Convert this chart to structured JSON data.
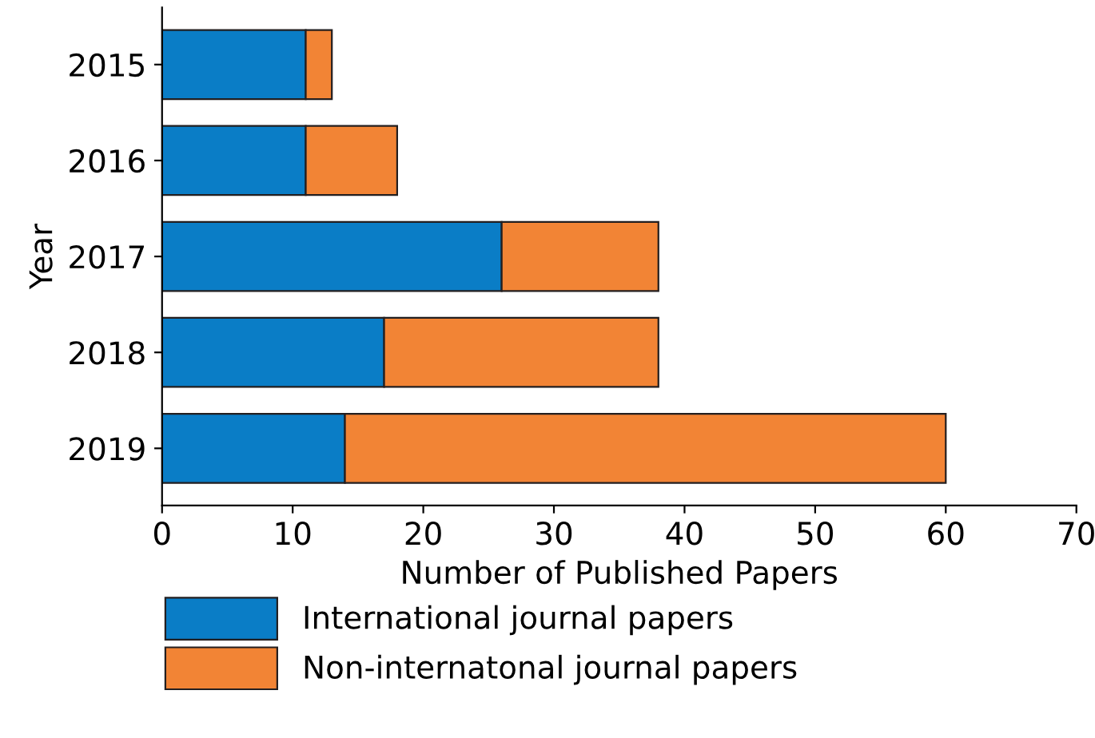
{
  "chart_data": {
    "type": "bar",
    "orientation": "horizontal",
    "stacked": true,
    "xlabel": "Number of Published Papers",
    "ylabel": "Year",
    "categories": [
      "2015",
      "2016",
      "2017",
      "2018",
      "2019"
    ],
    "series": [
      {
        "name": "International journal papers",
        "color": "#0a7dc6",
        "values": [
          11,
          11,
          26,
          17,
          14
        ]
      },
      {
        "name": "Non-internatonal journal papers",
        "color": "#f28435",
        "values": [
          2,
          7,
          12,
          21,
          46
        ]
      }
    ],
    "xlim": [
      0,
      70
    ],
    "xticks": [
      0,
      10,
      20,
      30,
      40,
      50,
      60,
      70
    ],
    "grid": false,
    "legend": "bottom"
  }
}
